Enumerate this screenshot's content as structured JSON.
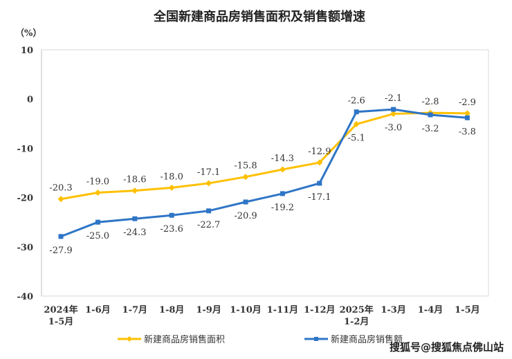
{
  "chart_data": {
    "type": "line",
    "title": "全国新建商品房销售面积及销售额增速",
    "ylabel": "（%）",
    "xlabel": "",
    "ylim": [
      -40,
      10
    ],
    "yticks": [
      10,
      0,
      -10,
      -20,
      -30,
      -40
    ],
    "categories": [
      [
        "2024年",
        "1-5月"
      ],
      [
        "1-6月"
      ],
      [
        "1-7月"
      ],
      [
        "1-8月"
      ],
      [
        "1-9月"
      ],
      [
        "1-10月"
      ],
      [
        "1-11月"
      ],
      [
        "1-12月"
      ],
      [
        "2025年",
        "1-2月"
      ],
      [
        "1-3月"
      ],
      [
        "1-4月"
      ],
      [
        "1-5月"
      ]
    ],
    "series": [
      {
        "name": "新建商品房销售面积",
        "color": "#FFC000",
        "marker": "diamond",
        "values": [
          -20.3,
          -19.0,
          -18.6,
          -18.0,
          -17.1,
          -15.8,
          -14.3,
          -12.9,
          -5.1,
          -3.0,
          -2.8,
          -2.9
        ]
      },
      {
        "name": "新建商品房销售额",
        "color": "#2E75C6",
        "marker": "square",
        "values": [
          -27.9,
          -25.0,
          -24.3,
          -23.6,
          -22.7,
          -20.9,
          -19.2,
          -17.1,
          -2.6,
          -2.1,
          -3.2,
          -3.8
        ]
      }
    ],
    "grid": false,
    "legend": "bottom"
  },
  "watermark": "搜狐号@搜狐焦点佛山站"
}
